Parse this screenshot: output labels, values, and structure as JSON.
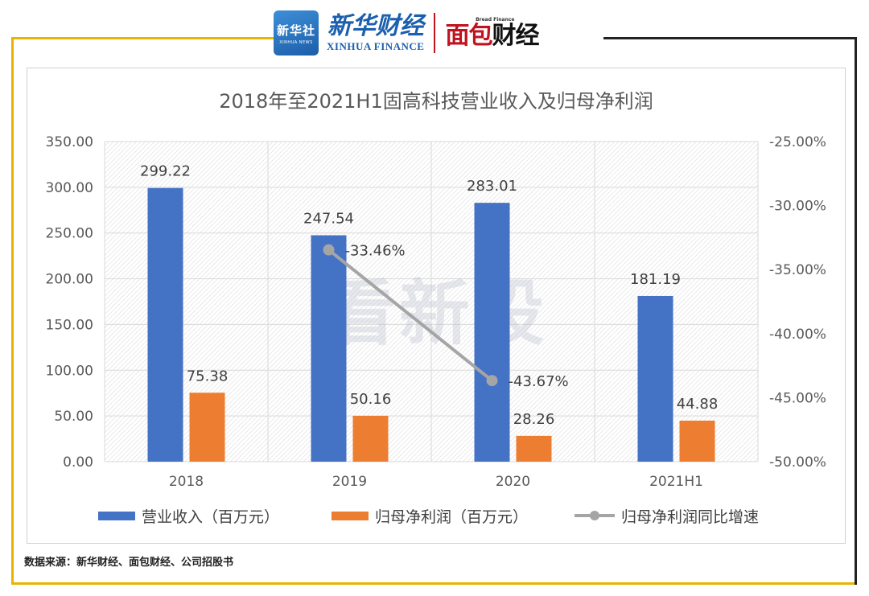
{
  "header": {
    "xinhua_badge_cn": "新华社",
    "xinhua_badge_en": "XINHUA NEWS",
    "xinhua_name_cn": "新华财经",
    "xinhua_name_en": "XINHUA FINANCE",
    "bread_name_en": "Bread Finance",
    "bread_name_cn_a": "面包",
    "bread_name_cn_b": "财经"
  },
  "watermark": "看新股",
  "source": "数据来源：新华财经、面包财经、公司招股书",
  "colors": {
    "revenue": "#4472c4",
    "profit": "#ed7d31",
    "growth": "#a5a5a5",
    "accent": "#e8b400"
  },
  "chart_data": {
    "type": "bar",
    "title": "2018年至2021H1固高科技营业收入及归母净利润",
    "categories": [
      "2018",
      "2019",
      "2020",
      "2021H1"
    ],
    "y_left": {
      "min": 0,
      "max": 350,
      "step": 50,
      "tick_labels": [
        "0.00",
        "50.00",
        "100.00",
        "150.00",
        "200.00",
        "250.00",
        "300.00",
        "350.00"
      ]
    },
    "y_right": {
      "min": -50,
      "max": -25,
      "step": 5,
      "tick_labels": [
        "-50.00%",
        "-45.00%",
        "-40.00%",
        "-35.00%",
        "-30.00%",
        "-25.00%"
      ]
    },
    "series": [
      {
        "name": "营业收入（百万元）",
        "kind": "bar",
        "axis": "left",
        "values": [
          299.22,
          247.54,
          283.01,
          181.19
        ],
        "labels": [
          "299.22",
          "247.54",
          "283.01",
          "181.19"
        ]
      },
      {
        "name": "归母净利润（百万元）",
        "kind": "bar",
        "axis": "left",
        "values": [
          75.38,
          50.16,
          28.26,
          44.88
        ],
        "labels": [
          "75.38",
          "50.16",
          "28.26",
          "44.88"
        ]
      },
      {
        "name": "归母净利润同比增速",
        "kind": "line",
        "axis": "right",
        "values": [
          null,
          -33.46,
          -43.67,
          null
        ],
        "labels": [
          "",
          "-33.46%",
          "-43.67%",
          ""
        ]
      }
    ],
    "grid": true,
    "legend": "bottom"
  }
}
